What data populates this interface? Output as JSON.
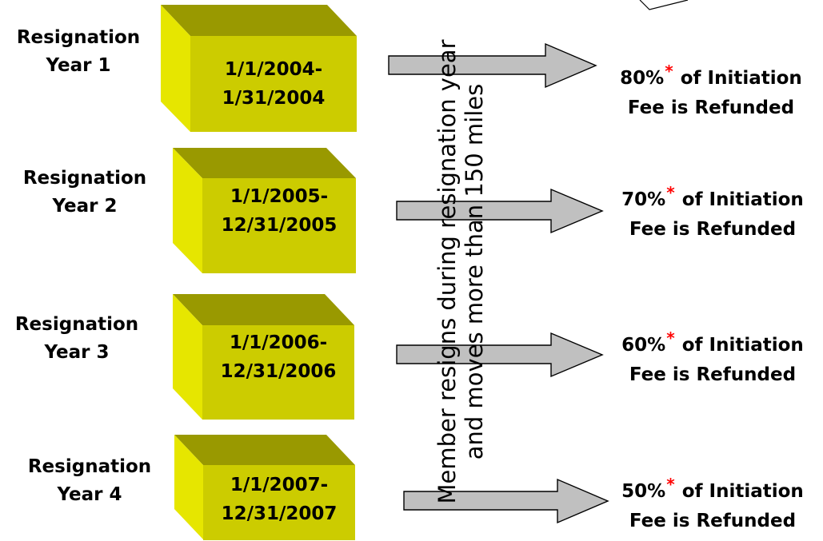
{
  "colors": {
    "box_front": "#cccc00",
    "box_top": "#999900",
    "box_side": "#e6e600",
    "box_text": "#000000",
    "arrow_fill": "#c0c0c0",
    "arrow_stroke": "#000000",
    "asterisk": "#ff0000"
  },
  "rows": [
    {
      "label_line1": "Resignation",
      "label_line2": "Year 1",
      "date_start": "1/1/2004-",
      "date_end": "1/31/2004",
      "percent": "80%",
      "asterisk": "*",
      "result_text": "of Initiation",
      "result_line2": "Fee is Refunded"
    },
    {
      "label_line1": "Resignation",
      "label_line2": "Year 2",
      "date_start": "1/1/2005-",
      "date_end": "12/31/2005",
      "percent": "70%",
      "asterisk": "*",
      "result_text": "of Initiation",
      "result_line2": "Fee is Refunded"
    },
    {
      "label_line1": "Resignation",
      "label_line2": "Year 3",
      "date_start": "1/1/2006-",
      "date_end": "12/31/2006",
      "percent": "60%",
      "asterisk": "*",
      "result_text": "of Initiation",
      "result_line2": "Fee is Refunded"
    },
    {
      "label_line1": "Resignation",
      "label_line2": "Year 4",
      "date_start": "1/1/2007-",
      "date_end": "12/31/2007",
      "percent": "50%",
      "asterisk": "*",
      "result_text": "of Initiation",
      "result_line2": "Fee is Refunded"
    }
  ],
  "vertical_note": {
    "line1": "Member resigns during resignation year",
    "line2": "and moves more than 150 miles"
  }
}
